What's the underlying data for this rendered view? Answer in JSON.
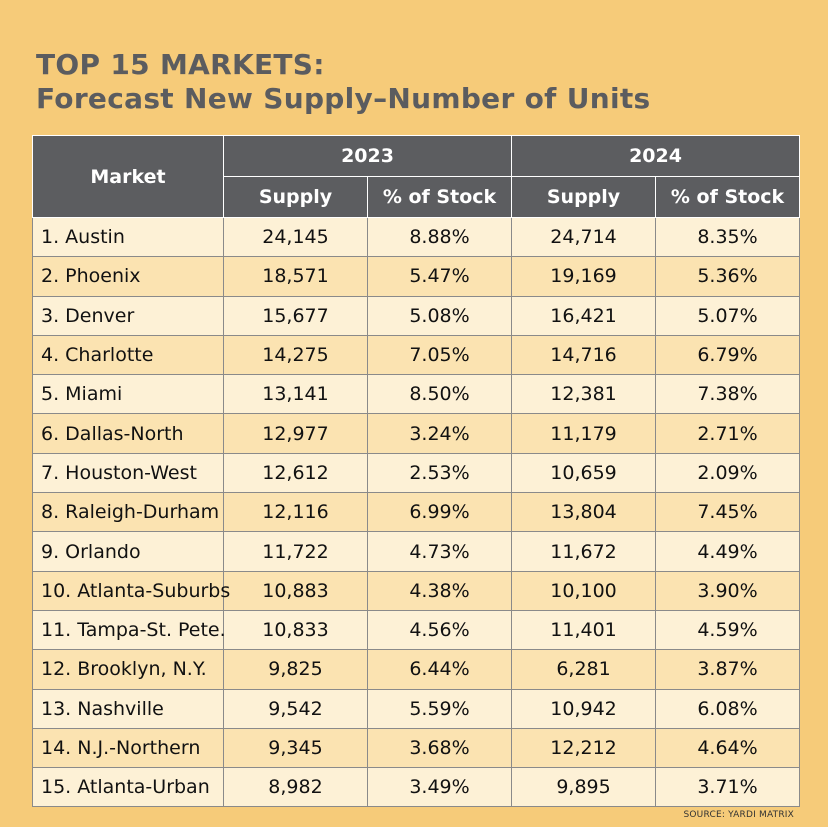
{
  "title": {
    "line1": "TOP 15 MARKETS:",
    "line2": "Forecast New Supply–Number of Units"
  },
  "table": {
    "market_header": "Market",
    "year1": "2023",
    "year2": "2024",
    "supply_header": "Supply",
    "stock_header": "% of Stock"
  },
  "source": "SOURCE: YARDI MATRIX",
  "chart_data": {
    "type": "table",
    "title": "TOP 15 MARKETS: Forecast New Supply–Number of Units",
    "columns": [
      "Market",
      "2023 Supply",
      "2023 % of Stock",
      "2024 Supply",
      "2024 % of Stock"
    ],
    "rows": [
      [
        "1. Austin",
        "24,145",
        "8.88%",
        "24,714",
        "8.35%"
      ],
      [
        "2. Phoenix",
        "18,571",
        "5.47%",
        "19,169",
        "5.36%"
      ],
      [
        "3. Denver",
        "15,677",
        "5.08%",
        "16,421",
        "5.07%"
      ],
      [
        "4. Charlotte",
        "14,275",
        "7.05%",
        "14,716",
        "6.79%"
      ],
      [
        "5. Miami",
        "13,141",
        "8.50%",
        "12,381",
        "7.38%"
      ],
      [
        "6. Dallas-North",
        "12,977",
        "3.24%",
        "11,179",
        "2.71%"
      ],
      [
        "7. Houston-West",
        "12,612",
        "2.53%",
        "10,659",
        "2.09%"
      ],
      [
        "8. Raleigh-Durham",
        "12,116",
        "6.99%",
        "13,804",
        "7.45%"
      ],
      [
        "9. Orlando",
        "11,722",
        "4.73%",
        "11,672",
        "4.49%"
      ],
      [
        "10. Atlanta-Suburbs",
        "10,883",
        "4.38%",
        "10,100",
        "3.90%"
      ],
      [
        "11. Tampa-St. Pete.",
        "10,833",
        "4.56%",
        "11,401",
        "4.59%"
      ],
      [
        "12. Brooklyn, N.Y.",
        "9,825",
        "6.44%",
        "6,281",
        "3.87%"
      ],
      [
        "13. Nashville",
        "9,542",
        "5.59%",
        "10,942",
        "6.08%"
      ],
      [
        "14. N.J.-Northern",
        "9,345",
        "3.68%",
        "12,212",
        "4.64%"
      ],
      [
        "15. Atlanta-Urban",
        "8,982",
        "3.49%",
        "9,895",
        "3.71%"
      ]
    ]
  }
}
